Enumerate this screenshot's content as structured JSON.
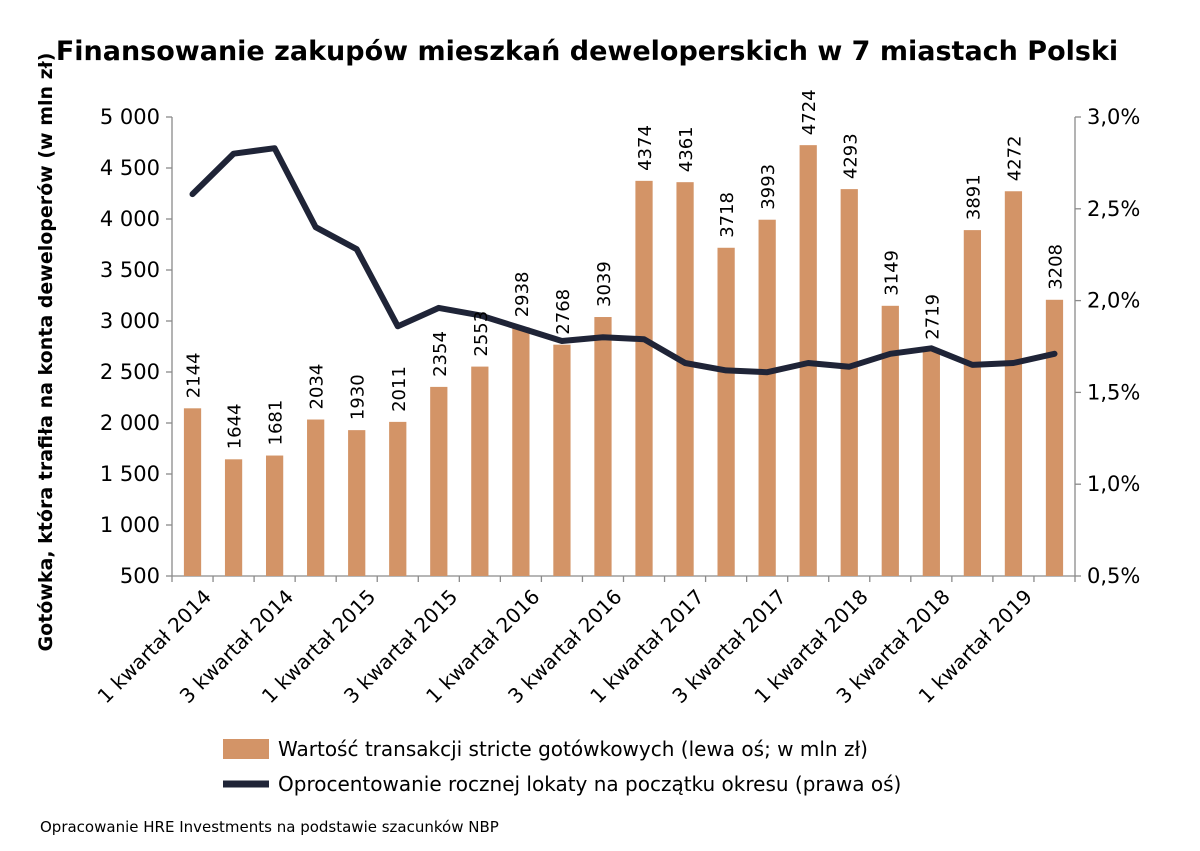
{
  "chart_data": {
    "type": "bar",
    "title": "Finansowanie zakupów mieszkań deweloperskich w 7 miastach Polski",
    "ylabel": "Gotówka, która trafiła na konta deweloperów (w mln zł)",
    "ylim": [
      500,
      5000
    ],
    "y_ticks": [
      "5 000",
      "4 500",
      "4 000",
      "3 500",
      "3 000",
      "2 500",
      "2 000",
      "1 500",
      "1 000",
      "500"
    ],
    "y2lim": [
      0.5,
      3.0
    ],
    "y2_ticks": [
      "3,0%",
      "2,5%",
      "2,0%",
      "1,5%",
      "1,0%",
      "0,5%"
    ],
    "x_tick_labels": [
      "1 kwartał 2014",
      "3 kwartał 2014",
      "1 kwartał 2015",
      "3 kwartał 2015",
      "1 kwartał 2016",
      "3 kwartał 2016",
      "1 kwartał 2017",
      "3 kwartał 2017",
      "1 kwartał 2018",
      "3 kwartał 2018",
      "1 kwartał 2019"
    ],
    "series": [
      {
        "name": "Wartość transakcji stricte gotówkowych (lewa oś; w mln zł)",
        "type": "bar",
        "axis": "left",
        "color": "#d39467",
        "values": [
          2144,
          1644,
          1681,
          2034,
          1930,
          2011,
          2354,
          2553,
          2938,
          2768,
          3039,
          4374,
          4361,
          3718,
          3993,
          4724,
          4293,
          3149,
          2719,
          3891,
          4272,
          3208
        ],
        "labels": [
          "2144",
          "1644",
          "1681",
          "2034",
          "1930",
          "2011",
          "2354",
          "2553",
          "2938",
          "2768",
          "3039",
          "4374",
          "4361",
          "3718",
          "3993",
          "4724",
          "4293",
          "3149",
          "2719",
          "3891",
          "4272",
          "3208"
        ]
      },
      {
        "name": "Oprocentowanie rocznej lokaty na początku okresu (prawa oś)",
        "type": "line",
        "axis": "right",
        "color": "#1f2437",
        "values": [
          2.58,
          2.8,
          2.83,
          2.4,
          2.28,
          1.86,
          1.96,
          1.92,
          1.85,
          1.78,
          1.8,
          1.79,
          1.66,
          1.62,
          1.61,
          1.66,
          1.64,
          1.71,
          1.74,
          1.65,
          1.66,
          1.71
        ]
      }
    ],
    "grid": false,
    "legend_position": "bottom"
  },
  "source_note": "Opracowanie HRE Investments na podstawie szacunków NBP"
}
